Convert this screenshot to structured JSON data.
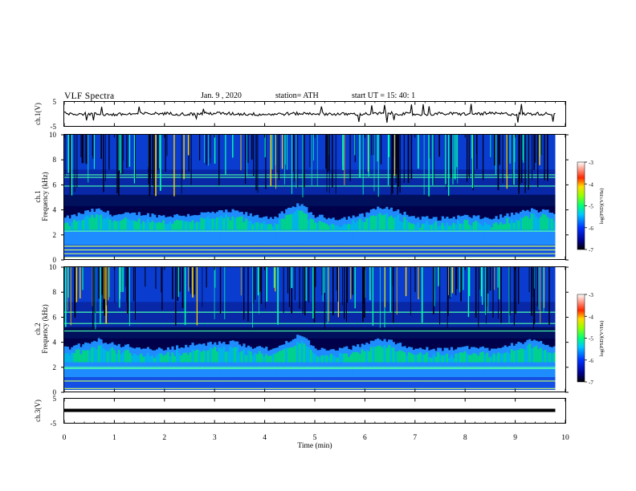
{
  "header": {
    "title": "VLF  Spectra",
    "date": "Jan.  9  , 2020",
    "station": "station= ATH",
    "start_ut": "start  UT  =   15: 40: 1"
  },
  "chart_data": [
    {
      "type": "line",
      "panel": "ch1-waveform",
      "ylabel": "ch.1(V)",
      "ylim": [
        -5,
        5
      ],
      "yticks": [
        "5",
        "-5"
      ],
      "xlim": [
        0,
        10
      ],
      "x": [
        0,
        0.5,
        1,
        1.5,
        2,
        2.5,
        3,
        3.5,
        4,
        4.5,
        5,
        5.5,
        6,
        6.5,
        7,
        7.5,
        8,
        8.5,
        9,
        9.5,
        9.8
      ],
      "y": [
        0.2,
        0.0,
        -0.3,
        0.1,
        0.2,
        -0.1,
        0.3,
        0.0,
        -0.2,
        0.1,
        0.2,
        -0.1,
        0.0,
        0.3,
        -0.2,
        0.1,
        0.0,
        0.2,
        -0.1,
        0.1,
        0.0
      ],
      "color": "#000000"
    },
    {
      "type": "heatmap",
      "panel": "ch1-spectrogram",
      "ylabel": "ch.1",
      "ylabel2": "Frequency  (kHz)",
      "ylim": [
        0,
        10
      ],
      "yticks": [
        "0",
        "2",
        "4",
        "6",
        "8",
        "10"
      ],
      "xlim": [
        0,
        9.8
      ],
      "colorbar": {
        "label": "log(PSD)(V²/Hz)",
        "range": [
          -7,
          -3
        ],
        "ticks": [
          "-3",
          "-4",
          "-5",
          "-6",
          "-7"
        ]
      },
      "hiss_envelope_khz": [
        [
          0,
          3.3
        ],
        [
          0.5,
          3.9
        ],
        [
          0.7,
          4.0
        ],
        [
          1.0,
          3.6
        ],
        [
          1.5,
          3.7
        ],
        [
          2.0,
          3.5
        ],
        [
          2.5,
          3.6
        ],
        [
          3.0,
          3.8
        ],
        [
          3.4,
          3.9
        ],
        [
          3.8,
          3.5
        ],
        [
          4.2,
          3.4
        ],
        [
          4.7,
          4.5
        ],
        [
          5.0,
          3.5
        ],
        [
          5.5,
          3.3
        ],
        [
          6.0,
          3.6
        ],
        [
          6.2,
          4.2
        ],
        [
          6.6,
          4.0
        ],
        [
          7.0,
          3.4
        ],
        [
          7.5,
          3.3
        ],
        [
          8.0,
          3.5
        ],
        [
          8.5,
          3.3
        ],
        [
          9.0,
          3.7
        ],
        [
          9.3,
          4.0
        ],
        [
          9.8,
          3.8
        ]
      ],
      "lines_khz": [
        0.2,
        0.5,
        0.8,
        1.1,
        2.3,
        5.9,
        6.6,
        6.8
      ]
    },
    {
      "type": "heatmap",
      "panel": "ch2-spectrogram",
      "ylabel": "ch.2",
      "ylabel2": "Frequency  (kHz)",
      "ylim": [
        0,
        10
      ],
      "yticks": [
        "0",
        "2",
        "4",
        "6",
        "8",
        "10"
      ],
      "xlim": [
        0,
        9.8
      ],
      "colorbar": {
        "label": "log(PSD)(V²/Hz)",
        "range": [
          -7,
          -3
        ],
        "ticks": [
          "-3",
          "-4",
          "-5",
          "-6",
          "-7"
        ]
      },
      "hiss_envelope_khz": [
        [
          0,
          3.5
        ],
        [
          0.5,
          3.9
        ],
        [
          0.7,
          4.2
        ],
        [
          1.0,
          3.8
        ],
        [
          1.5,
          3.6
        ],
        [
          2.0,
          3.4
        ],
        [
          2.5,
          3.8
        ],
        [
          3.0,
          3.9
        ],
        [
          3.4,
          4.0
        ],
        [
          3.8,
          3.6
        ],
        [
          4.2,
          3.4
        ],
        [
          4.7,
          4.7
        ],
        [
          5.0,
          3.5
        ],
        [
          5.5,
          3.4
        ],
        [
          6.0,
          3.8
        ],
        [
          6.2,
          4.3
        ],
        [
          6.6,
          4.0
        ],
        [
          7.0,
          3.5
        ],
        [
          7.5,
          3.4
        ],
        [
          8.0,
          3.6
        ],
        [
          8.5,
          3.5
        ],
        [
          9.0,
          3.9
        ],
        [
          9.3,
          4.1
        ],
        [
          9.8,
          3.7
        ]
      ],
      "lines_khz": [
        0.3,
        0.9,
        1.9,
        2.0,
        4.9,
        5.5,
        6.4
      ]
    },
    {
      "type": "line",
      "panel": "ch3-waveform",
      "ylabel": "ch.3(V)",
      "ylim": [
        -5,
        5
      ],
      "yticks": [
        "5",
        "-5"
      ],
      "xlim": [
        0,
        10
      ],
      "x": [
        0,
        9.8
      ],
      "y": [
        0.0,
        0.0
      ],
      "color": "#000000"
    }
  ],
  "x_axis": {
    "label": "Time  (min)",
    "ticks": [
      "0",
      "1",
      "2",
      "3",
      "4",
      "5",
      "6",
      "7",
      "8",
      "9",
      "10"
    ],
    "range": [
      0,
      10
    ]
  },
  "palette": [
    "#000060",
    "#0000c8",
    "#0064ff",
    "#00d2ff",
    "#00ff64",
    "#c8ff00",
    "#ffc800",
    "#ff0000",
    "#ffffff"
  ]
}
